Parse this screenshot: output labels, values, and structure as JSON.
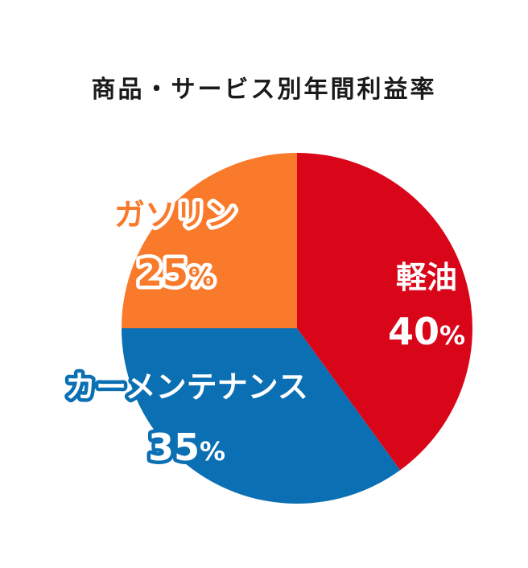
{
  "chart_data": {
    "type": "pie",
    "title": "商品・サービス別年間利益率",
    "slices": [
      {
        "label": "軽油",
        "value": 40,
        "value_text": "40",
        "unit": "%",
        "color": "#d9061a",
        "label_fill": "#ffffff",
        "label_stroke": "#d9061a"
      },
      {
        "label": "カーメンテナンス",
        "value": 35,
        "value_text": "35",
        "unit": "%",
        "color": "#0a6fb3",
        "label_fill": "#ffffff",
        "label_stroke": "#0a6fb3"
      },
      {
        "label": "ガソリン",
        "value": 25,
        "value_text": "25",
        "unit": "%",
        "color": "#f97a2a",
        "label_fill": "#f97a2a",
        "label_stroke": "#ffffff"
      }
    ]
  }
}
